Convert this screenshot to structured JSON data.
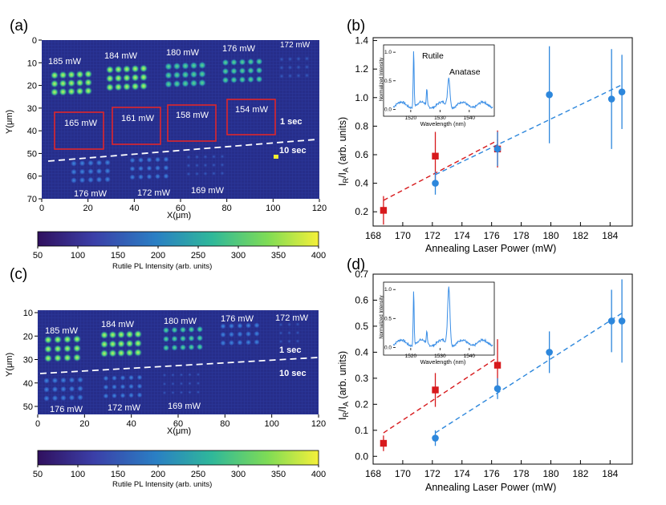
{
  "panel_labels": {
    "a": "(a)",
    "b": "(b)",
    "c": "(c)",
    "d": "(d)"
  },
  "colors": {
    "map_bg": "#262c86",
    "spot_low": "#2f55c8",
    "spot_mid": "#3bb5a6",
    "spot_high": "#57e07a",
    "annot_white": "#ffffff",
    "box_red": "#e0262a",
    "series_red": "#d7191c",
    "series_blue": "#2d87dc",
    "spectrum": "#3a8ee6"
  },
  "colorbar": {
    "ticks": [
      "50",
      "100",
      "150",
      "200",
      "250",
      "300",
      "350",
      "400"
    ],
    "label": "Rutile PL Intensity (arb. units)",
    "stops": [
      "#440154",
      "#3b528b",
      "#21918c",
      "#5ec962",
      "#fde725"
    ]
  },
  "map_a": {
    "xlabel": "X(μm)",
    "ylabel": "Y(μm)",
    "xticks": [
      "0",
      "20",
      "40",
      "60",
      "80",
      "100",
      "120"
    ],
    "yticks": [
      "0",
      "10",
      "20",
      "30",
      "40",
      "50",
      "60",
      "70"
    ],
    "top_labels": [
      "185 mW",
      "184 mW",
      "180 mW",
      "176 mW",
      "172 mW"
    ],
    "box_labels": [
      "165 mW",
      "161 mW",
      "158 mW",
      "154 mW"
    ],
    "bottom_labels": [
      "176 mW",
      "172 mW",
      "169 mW"
    ],
    "time_top": "1 sec",
    "time_bottom": "10 sec"
  },
  "map_c": {
    "xlabel": "X(μm)",
    "ylabel": "Y(μm)",
    "xticks": [
      "0",
      "20",
      "40",
      "60",
      "80",
      "100",
      "120"
    ],
    "yticks": [
      "10",
      "20",
      "30",
      "40",
      "50"
    ],
    "top_labels": [
      "185 mW",
      "184 mW",
      "180 mW",
      "176 mW",
      "172 mW"
    ],
    "bottom_labels": [
      "176 mW",
      "172 mW",
      "169 mW"
    ],
    "time_top": "1 sec",
    "time_bottom": "10 sec"
  },
  "chart_data": [
    {
      "panel": "b",
      "type": "scatter",
      "xlabel": "Annealing Laser Power (mW)",
      "ylabel": "IR/IA (arb. units)",
      "xlim": [
        168,
        185.5
      ],
      "ylim": [
        0.1,
        1.42
      ],
      "xticks": [
        168,
        170,
        172,
        174,
        176,
        178,
        180,
        182,
        184
      ],
      "yticks": [
        0.2,
        0.4,
        0.6,
        0.8,
        1.0,
        1.2,
        1.4
      ],
      "ytick_labels": [
        "0.2",
        "0.4",
        "0.6",
        "0.8",
        "1.0",
        "1.2",
        "1.4"
      ],
      "series": [
        {
          "name": "red",
          "marker": "square",
          "x": [
            168.7,
            172.2,
            176.4
          ],
          "y": [
            0.21,
            0.59,
            0.64
          ],
          "err": [
            0.1,
            0.17,
            0.13
          ]
        },
        {
          "name": "blue",
          "marker": "circle",
          "x": [
            172.2,
            176.4,
            179.9,
            184.1,
            184.8
          ],
          "y": [
            0.4,
            0.64,
            1.02,
            0.99,
            1.04
          ],
          "err": [
            0.08,
            0.12,
            0.34,
            0.35,
            0.26
          ]
        }
      ],
      "fits": [
        {
          "series": "red",
          "x": [
            168.7,
            176.4
          ],
          "y": [
            0.28,
            0.7
          ]
        },
        {
          "series": "blue",
          "x": [
            172.2,
            184.8
          ],
          "y": [
            0.46,
            1.09
          ]
        }
      ],
      "inset": {
        "xlabel": "Wavelength (nm)",
        "ylabel": "Normalized Intensity",
        "xticks": [
          "1520",
          "1530",
          "1540"
        ],
        "yticks": [
          "0.0",
          "0.5",
          "1.0"
        ],
        "annotations": [
          "Rutile",
          "Anatase"
        ],
        "peaks": [
          {
            "wavelength": 1521.0,
            "height": 1.0
          },
          {
            "wavelength": 1525.5,
            "height": 0.28
          },
          {
            "wavelength": 1533.0,
            "height": 0.5
          }
        ]
      }
    },
    {
      "panel": "d",
      "type": "scatter",
      "xlabel": "Annealing Laser Power (mW)",
      "ylabel": "IR/IA (arb. units)",
      "xlim": [
        168,
        185.5
      ],
      "ylim": [
        -0.03,
        0.7
      ],
      "xticks": [
        168,
        170,
        172,
        174,
        176,
        178,
        180,
        182,
        184
      ],
      "yticks": [
        0.0,
        0.1,
        0.2,
        0.3,
        0.4,
        0.5,
        0.6,
        0.7
      ],
      "ytick_labels": [
        "0.0",
        "0.1",
        "0.2",
        "0.3",
        "0.4",
        "0.5",
        "0.6",
        "0.7"
      ],
      "series": [
        {
          "name": "red",
          "marker": "square",
          "x": [
            168.7,
            172.2,
            176.4
          ],
          "y": [
            0.05,
            0.255,
            0.35
          ],
          "err": [
            0.03,
            0.065,
            0.1
          ]
        },
        {
          "name": "blue",
          "marker": "circle",
          "x": [
            172.2,
            176.4,
            179.9,
            184.1,
            184.8
          ],
          "y": [
            0.07,
            0.26,
            0.4,
            0.52,
            0.52
          ],
          "err": [
            0.03,
            0.04,
            0.08,
            0.12,
            0.16
          ]
        }
      ],
      "fits": [
        {
          "series": "red",
          "x": [
            168.7,
            176.4
          ],
          "y": [
            0.09,
            0.38
          ]
        },
        {
          "series": "blue",
          "x": [
            172.2,
            184.8
          ],
          "y": [
            0.09,
            0.55
          ]
        }
      ],
      "inset": {
        "xlabel": "Wavelength (nm)",
        "ylabel": "Normalized Intensity",
        "xticks": [
          "1520",
          "1530",
          "1540"
        ],
        "yticks": [
          "0.0",
          "0.5",
          "1.0"
        ],
        "annotations": [],
        "peaks": [
          {
            "wavelength": 1521.0,
            "height": 0.95
          },
          {
            "wavelength": 1525.5,
            "height": 0.2
          },
          {
            "wavelength": 1533.0,
            "height": 1.0
          }
        ]
      }
    }
  ]
}
